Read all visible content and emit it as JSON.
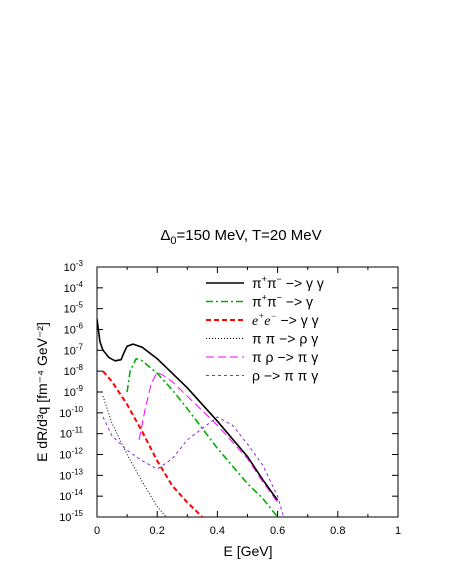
{
  "chart_data": {
    "type": "line",
    "title_parts": [
      "Δ",
      "0",
      "=150 MeV, T=20 MeV"
    ],
    "xlabel": "E [GeV]",
    "ylabel": "E dR/d³q [fm⁻⁴ GeV⁻²]",
    "xlim": [
      0,
      1
    ],
    "ylim_log10": [
      -15,
      -3
    ],
    "y_scale": "log",
    "x_ticks": [
      0,
      0.2,
      0.4,
      0.6,
      0.8,
      1
    ],
    "x_tick_labels": [
      "0",
      "0.2",
      "0.4",
      "0.6",
      "0.8",
      "1"
    ],
    "y_tick_exponents": [
      -3,
      -4,
      -5,
      -6,
      -7,
      -8,
      -9,
      -10,
      -11,
      -12,
      -13,
      -14,
      -15
    ],
    "y_tick_base": "10",
    "legend_position": "top-right",
    "series": [
      {
        "name": "π⁺π⁻ −> γ γ",
        "color": "#000000",
        "dash": "solid",
        "x": [
          0.0,
          0.01,
          0.02,
          0.04,
          0.06,
          0.08,
          0.09,
          0.1,
          0.12,
          0.15,
          0.2,
          0.25,
          0.3,
          0.4,
          0.5,
          0.55,
          0.6
        ],
        "log10y": [
          -5.5,
          -6.6,
          -7.0,
          -7.35,
          -7.5,
          -7.45,
          -7.1,
          -6.8,
          -6.7,
          -6.85,
          -7.4,
          -8.1,
          -8.8,
          -10.4,
          -12.1,
          -13.2,
          -14.2
        ]
      },
      {
        "name": "π⁺π⁻ −> γ",
        "color": "#00b000",
        "dash": "dashdot",
        "x": [
          0.1,
          0.11,
          0.13,
          0.15,
          0.2,
          0.25,
          0.3,
          0.4,
          0.5,
          0.55,
          0.6
        ],
        "log10y": [
          -9.0,
          -8.0,
          -7.4,
          -7.5,
          -8.1,
          -8.9,
          -9.8,
          -11.7,
          -13.4,
          -14.1,
          -15.0
        ]
      },
      {
        "name": "e⁺e⁻ −> γ γ",
        "color": "#ff0000",
        "dash": "dashed",
        "x": [
          0.02,
          0.05,
          0.1,
          0.15,
          0.2,
          0.25,
          0.3,
          0.35
        ],
        "log10y": [
          -8.0,
          -8.5,
          -9.6,
          -10.9,
          -12.3,
          -13.5,
          -14.3,
          -15.0
        ]
      },
      {
        "name": "π π −> ρ γ",
        "color": "#000000",
        "dash": "dotted",
        "x": [
          0.02,
          0.05,
          0.1,
          0.15,
          0.2,
          0.23
        ],
        "log10y": [
          -9.2,
          -10.5,
          -12.0,
          -13.3,
          -14.5,
          -15.0
        ]
      },
      {
        "name": "π ρ −> π γ",
        "color": "#ff00ff",
        "dash": "longdash",
        "x": [
          0.14,
          0.16,
          0.18,
          0.2,
          0.22,
          0.25,
          0.3,
          0.4,
          0.5,
          0.55,
          0.6
        ],
        "log10y": [
          -11.3,
          -9.8,
          -8.6,
          -8.05,
          -8.2,
          -8.5,
          -9.2,
          -10.6,
          -12.2,
          -13.3,
          -14.3
        ]
      },
      {
        "name": "ρ −> π π γ",
        "color": "#8a2be2",
        "dash": "shortdash",
        "x": [
          0.02,
          0.05,
          0.1,
          0.15,
          0.2,
          0.25,
          0.3,
          0.4,
          0.45,
          0.5,
          0.55,
          0.6,
          0.62
        ],
        "log10y": [
          -10.2,
          -11.1,
          -11.8,
          -12.3,
          -12.7,
          -12.2,
          -11.3,
          -10.2,
          -10.6,
          -11.5,
          -12.5,
          -14.0,
          -15.0
        ]
      }
    ]
  }
}
